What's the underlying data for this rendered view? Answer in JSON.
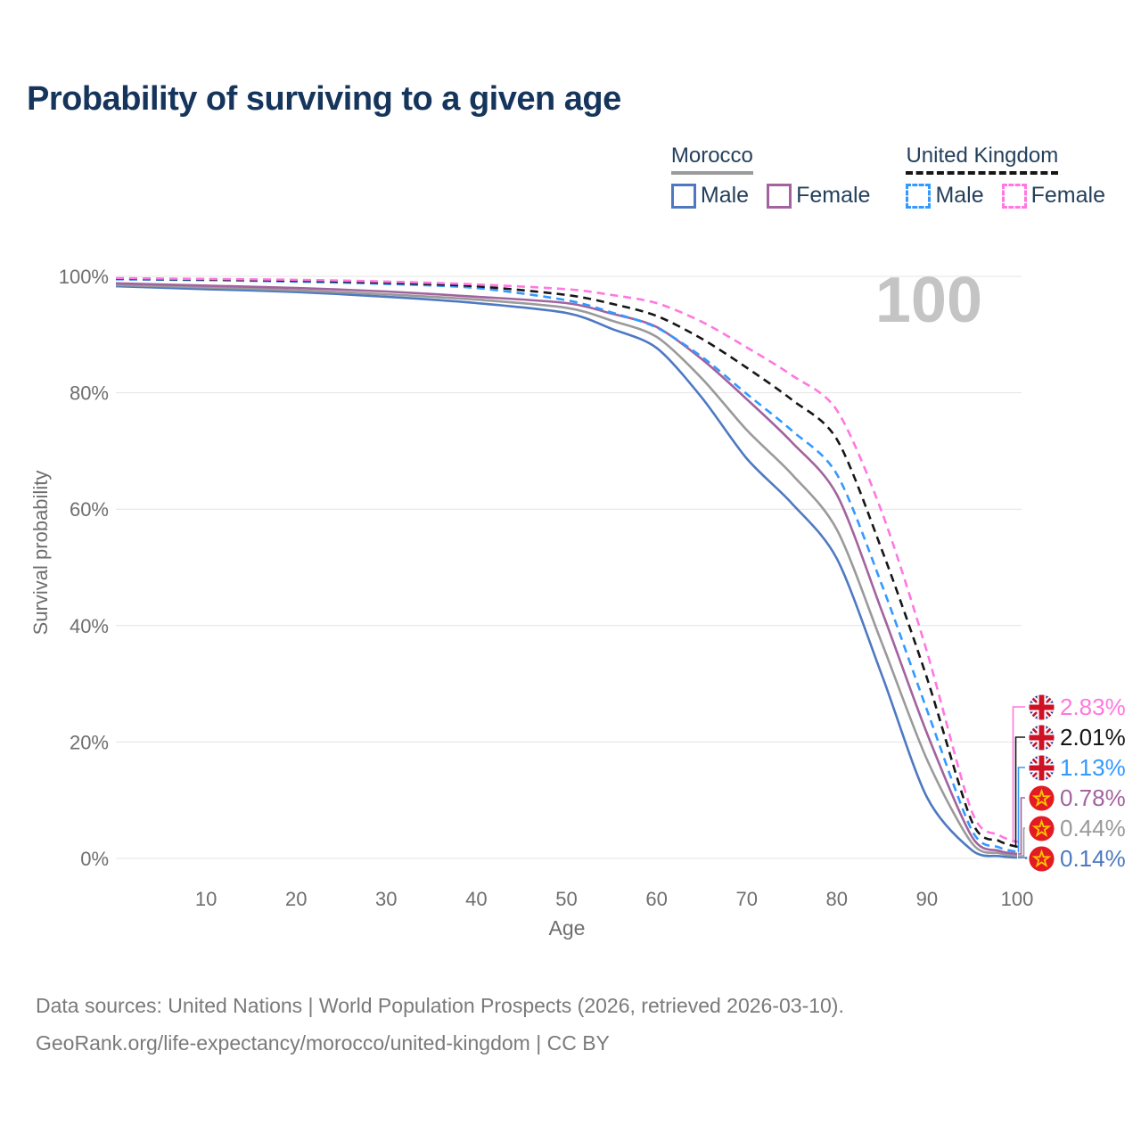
{
  "title": "Probability of surviving to a given age",
  "watermark": "100",
  "legend": {
    "groups": [
      {
        "country": "Morocco",
        "line_style": "solid",
        "line_color": "#9a9a9a",
        "items": [
          {
            "label": "Male",
            "color": "#4e79c2",
            "dashed": false
          },
          {
            "label": "Female",
            "color": "#a2639e",
            "dashed": false
          }
        ]
      },
      {
        "country": "United Kingdom",
        "line_style": "dashed",
        "line_color": "#161616",
        "items": [
          {
            "label": "Male",
            "color": "#3399ff",
            "dashed": true
          },
          {
            "label": "Female",
            "color": "#ff77e0",
            "dashed": true
          }
        ]
      }
    ]
  },
  "chart_data": {
    "type": "line",
    "title": "Probability of surviving to a given age",
    "xlabel": "Age",
    "ylabel": "Survival probability",
    "xlim": [
      0,
      100
    ],
    "ylim": [
      0,
      100
    ],
    "grid": "horizontal",
    "legend_position": "top-right",
    "x_ticks": [
      10,
      20,
      30,
      40,
      50,
      60,
      70,
      80,
      90,
      100
    ],
    "y_ticks": [
      0,
      20,
      40,
      60,
      80,
      100
    ],
    "y_tick_suffix": "%",
    "x": [
      0,
      10,
      20,
      30,
      40,
      50,
      55,
      60,
      65,
      70,
      75,
      80,
      85,
      90,
      95,
      98,
      100
    ],
    "series": [
      {
        "name": "United Kingdom Female",
        "country": "United Kingdom",
        "sex": "Female",
        "flag": "uk",
        "color": "#ff77e0",
        "dashed": true,
        "end_label": "2.83%",
        "values": [
          99.7,
          99.55,
          99.4,
          99.1,
          98.6,
          97.8,
          96.8,
          95.4,
          92.2,
          87.8,
          83.0,
          77.0,
          59.5,
          35.5,
          8.0,
          4.0,
          2.83
        ]
      },
      {
        "name": "United Kingdom",
        "country": "United Kingdom",
        "sex": "Both",
        "flag": "uk",
        "color": "#161616",
        "dashed": true,
        "end_label": "2.01%",
        "values": [
          99.6,
          99.45,
          99.25,
          98.9,
          98.3,
          96.8,
          95.3,
          93.2,
          89.3,
          84.3,
          78.8,
          72.0,
          53.0,
          31.0,
          6.3,
          3.0,
          2.01
        ]
      },
      {
        "name": "United Kingdom Male",
        "country": "United Kingdom",
        "sex": "Male",
        "flag": "uk",
        "color": "#3399ff",
        "dashed": true,
        "end_label": "1.13%",
        "values": [
          99.5,
          99.35,
          99.1,
          98.7,
          98.0,
          95.9,
          93.8,
          91.2,
          86.2,
          79.8,
          73.5,
          66.0,
          47.0,
          25.5,
          4.8,
          1.9,
          1.13
        ]
      },
      {
        "name": "Morocco Female",
        "country": "Morocco",
        "sex": "Female",
        "flag": "ma",
        "color": "#a2639e",
        "dashed": false,
        "end_label": "0.78%",
        "values": [
          98.8,
          98.4,
          98.0,
          97.4,
          96.5,
          95.4,
          93.6,
          91.3,
          85.8,
          78.9,
          71.5,
          62.5,
          42.5,
          21.5,
          3.7,
          1.3,
          0.78
        ]
      },
      {
        "name": "Morocco",
        "country": "Morocco",
        "sex": "Both",
        "flag": "ma",
        "color": "#9a9a9a",
        "dashed": false,
        "end_label": "0.44%",
        "values": [
          98.5,
          98.1,
          97.6,
          96.9,
          96.0,
          94.6,
          92.4,
          89.6,
          82.5,
          73.6,
          66.0,
          56.5,
          37.0,
          17.0,
          2.6,
          0.9,
          0.44
        ]
      },
      {
        "name": "Morocco Male",
        "country": "Morocco",
        "sex": "Male",
        "flag": "ma",
        "color": "#4e79c2",
        "dashed": false,
        "end_label": "0.14%",
        "values": [
          98.3,
          97.8,
          97.3,
          96.5,
          95.4,
          93.7,
          91.0,
          87.7,
          79.2,
          68.7,
          61.0,
          51.5,
          31.5,
          10.5,
          1.4,
          0.4,
          0.14
        ]
      }
    ]
  },
  "footer": {
    "line1": "Data sources: United Nations | World Population Prospects (2026, retrieved 2026-03-10).",
    "line2": "GeoRank.org/life-expectancy/morocco/united-kingdom | CC BY"
  },
  "colors": {
    "title": "#15355c",
    "axis_text": "#6e6e6e",
    "gridline": "#e4e4e4",
    "watermark": "#c4c4c4",
    "footer_text": "#7a7a7a",
    "uk_flag_blue": "#0A2A8F",
    "uk_flag_red": "#CE1124",
    "morocco_flag_red": "#E31B23",
    "morocco_star_yellow": "#FFC400"
  }
}
